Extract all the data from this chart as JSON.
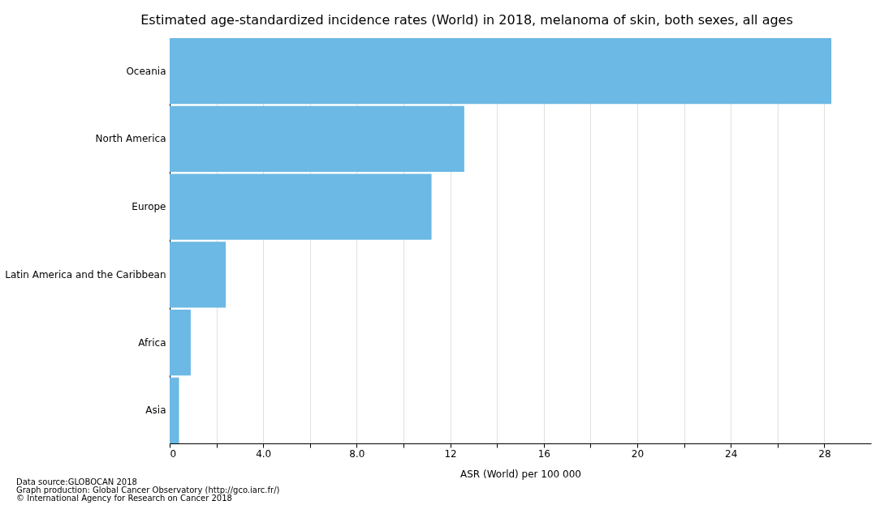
{
  "chart_data": {
    "type": "bar",
    "orientation": "horizontal",
    "title": "Estimated age-standardized incidence rates (World) in 2018, melanoma of skin, both sexes, all ages",
    "xlabel": "ASR (World) per 100 000",
    "categories": [
      "Oceania",
      "North America",
      "Europe",
      "Latin America and the Caribbean",
      "Africa",
      "Asia"
    ],
    "values": [
      28.3,
      12.6,
      11.2,
      2.4,
      0.9,
      0.4
    ],
    "color": "#6bb9e4",
    "xlim": [
      0,
      30
    ],
    "xticks": [
      0,
      {
        "value": 2,
        "label": null
      },
      {
        "value": 4,
        "label": "4.0"
      },
      {
        "value": 6,
        "label": null
      },
      {
        "value": 8,
        "label": "8.0"
      },
      {
        "value": 10,
        "label": null
      },
      12,
      {
        "value": 14,
        "label": null
      },
      16,
      {
        "value": 18,
        "label": null
      },
      20,
      {
        "value": 22,
        "label": null
      },
      24,
      {
        "value": 26,
        "label": null
      },
      28
    ],
    "grid": "x",
    "annotations": [
      "Data source:GLOBOCAN 2018",
      "Graph production: Global Cancer Observatory (http://gco.iarc.fr/)",
      "© International Agency for Research on Cancer 2018"
    ]
  }
}
